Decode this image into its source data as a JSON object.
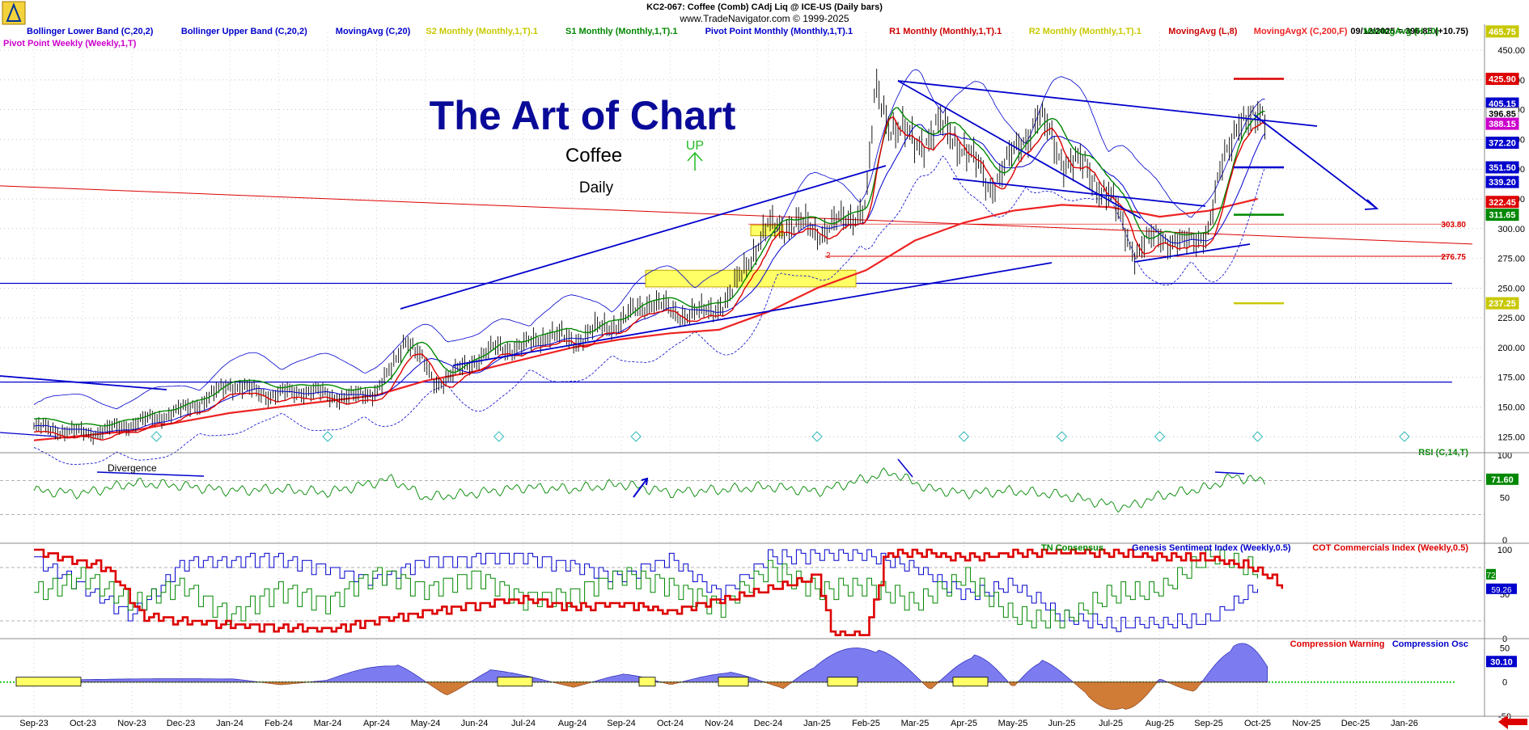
{
  "header": {
    "title": "KC2-067:  Coffee (Comb) CAdj Liq @ ICE-US  (Daily bars)",
    "copyright": "www.TradeNavigator.com © 1999-2025",
    "date_readout": "09/12/2025 = 396.85 (+10.75)"
  },
  "legend": [
    {
      "text": "Bollinger Lower Band (C,20,2)",
      "color": "#0000cc"
    },
    {
      "text": "Bollinger Upper Band (C,20,2)",
      "color": "#0000cc"
    },
    {
      "text": "MovingAvg (C,20)",
      "color": "#0000cc"
    },
    {
      "text": "S2 Monthly (Monthly,1,T).1",
      "color": "#c8c800"
    },
    {
      "text": "S1 Monthly (Monthly,1,T).1",
      "color": "#008800"
    },
    {
      "text": "Pivot Point Monthly (Monthly,1,T).1",
      "color": "#0000cc"
    },
    {
      "text": "R1 Monthly (Monthly,1,T).1",
      "color": "#cc0000"
    },
    {
      "text": "R2 Monthly (Monthly,1,T).1",
      "color": "#c8c800"
    },
    {
      "text": "MovingAvg (L,8)",
      "color": "#cc0000"
    },
    {
      "text": "MovingAvgX (C,200,F)",
      "color": "#ee2222"
    },
    {
      "text": "MovingAvg (H,10)",
      "color": "#008800"
    }
  ],
  "legend_line2": {
    "text": "Pivot Point Weekly (Weekly,1,T)",
    "color": "#cc00cc"
  },
  "annotations": {
    "art_title": "The Art of Chart",
    "commodity": "Coffee",
    "period": "Daily",
    "up_label": "UP",
    "divergence": "Divergence",
    "level_2": "2"
  },
  "colors": {
    "blue": "#0000cc",
    "red": "#dd0000",
    "green": "#008800",
    "yellow": "#c8c800",
    "highlight": "#ffff66"
  },
  "chart_data": [
    {
      "type": "line",
      "title": "KC2-067:  Coffee (Comb) CAdj Liq @ ICE-US  (Daily bars)",
      "x_labels": [
        "Sep-23",
        "Oct-23",
        "Nov-23",
        "Dec-23",
        "Jan-24",
        "Feb-24",
        "Mar-24",
        "Apr-24",
        "May-24",
        "Jun-24",
        "Jul-24",
        "Aug-24",
        "Sep-24",
        "Oct-24",
        "Nov-24",
        "Dec-24",
        "Jan-25",
        "Feb-25",
        "Mar-25",
        "Apr-25",
        "May-25",
        "Jun-25",
        "Jul-25",
        "Aug-25",
        "Sep-25",
        "Oct-25",
        "Nov-25",
        "Dec-25",
        "Jan-26"
      ],
      "y_ticks": [
        "450.00",
        "425.00",
        "400.00",
        "375.00",
        "350.00",
        "325.00",
        "300.00",
        "275.00",
        "250.00",
        "225.00",
        "200.00",
        "175.00",
        "150.00",
        "125.00"
      ],
      "ylim": [
        115,
        465
      ],
      "price_path": [
        [
          0,
          133
        ],
        [
          0.6,
          130
        ],
        [
          1.2,
          128
        ],
        [
          1.8,
          134
        ],
        [
          2.4,
          140
        ],
        [
          3,
          147
        ],
        [
          3.6,
          158
        ],
        [
          4,
          170
        ],
        [
          4.4,
          164
        ],
        [
          4.9,
          160
        ],
        [
          5.5,
          164
        ],
        [
          6,
          160
        ],
        [
          6.5,
          158
        ],
        [
          7,
          164
        ],
        [
          7.3,
          180
        ],
        [
          7.6,
          210
        ],
        [
          7.9,
          190
        ],
        [
          8.2,
          170
        ],
        [
          8.6,
          178
        ],
        [
          9,
          190
        ],
        [
          9.5,
          200
        ],
        [
          10,
          200
        ],
        [
          10.5,
          212
        ],
        [
          11,
          205
        ],
        [
          11.5,
          215
        ],
        [
          12,
          222
        ],
        [
          12.6,
          240
        ],
        [
          13,
          230
        ],
        [
          13.6,
          228
        ],
        [
          14.2,
          240
        ],
        [
          14.6,
          275
        ],
        [
          15,
          300
        ],
        [
          15.5,
          305
        ],
        [
          16,
          298
        ],
        [
          16.5,
          305
        ],
        [
          17,
          320
        ],
        [
          17.2,
          415
        ],
        [
          17.5,
          390
        ],
        [
          18,
          370
        ],
        [
          18.5,
          385
        ],
        [
          19,
          370
        ],
        [
          19.5,
          335
        ],
        [
          20,
          360
        ],
        [
          20.5,
          395
        ],
        [
          21,
          360
        ],
        [
          21.5,
          350
        ],
        [
          22,
          325
        ],
        [
          22.5,
          280
        ],
        [
          23,
          295
        ],
        [
          23.5,
          285
        ],
        [
          24,
          300
        ],
        [
          24.3,
          355
        ],
        [
          24.6,
          395
        ],
        [
          24.9,
          385
        ],
        [
          25.15,
          397
        ]
      ],
      "series": [
        {
          "name": "MovingAvgX (C,200,F)",
          "values": [
            [
              0,
              122
            ],
            [
              2,
              130
            ],
            [
              4,
              145
            ],
            [
              6,
              155
            ],
            [
              7,
              160
            ],
            [
              8,
              172
            ],
            [
              9,
              180
            ],
            [
              10,
              190
            ],
            [
              11,
              200
            ],
            [
              12,
              207
            ],
            [
              13,
              212
            ],
            [
              14,
              215
            ],
            [
              15,
              230
            ],
            [
              16,
              250
            ],
            [
              17,
              265
            ],
            [
              18,
              290
            ],
            [
              19,
              305
            ],
            [
              20,
              315
            ],
            [
              21,
              320
            ],
            [
              22,
              318
            ],
            [
              23,
              310
            ],
            [
              24,
              315
            ],
            [
              25,
              325
            ]
          ]
        },
        {
          "name": "RSI (C,14,T)",
          "values": [
            [
              0,
              58
            ],
            [
              1,
              55
            ],
            [
              2,
              67
            ],
            [
              3,
              64
            ],
            [
              4,
              58
            ],
            [
              5,
              60
            ],
            [
              6,
              56
            ],
            [
              7.3,
              72
            ],
            [
              8,
              50
            ],
            [
              9,
              55
            ],
            [
              10,
              62
            ],
            [
              11,
              60
            ],
            [
              12,
              66
            ],
            [
              13,
              56
            ],
            [
              14,
              59
            ],
            [
              15,
              63
            ],
            [
              16,
              57
            ],
            [
              17.5,
              80
            ],
            [
              18.3,
              60
            ],
            [
              19,
              55
            ],
            [
              20,
              58
            ],
            [
              21,
              53
            ],
            [
              22.3,
              38
            ],
            [
              23,
              52
            ],
            [
              24,
              62
            ],
            [
              24.5,
              75
            ],
            [
              25,
              70
            ]
          ]
        },
        {
          "name": "Genesis Sentiment Index (Weekly,0.5)",
          "values": [
            [
              0,
              90
            ],
            [
              2,
              25
            ],
            [
              3,
              85
            ],
            [
              5,
              90
            ],
            [
              7,
              65
            ],
            [
              8,
              88
            ],
            [
              10,
              92
            ],
            [
              12,
              70
            ],
            [
              13,
              90
            ],
            [
              14,
              50
            ],
            [
              15,
              92
            ],
            [
              17,
              95
            ],
            [
              18,
              80
            ],
            [
              19,
              50
            ],
            [
              20,
              60
            ],
            [
              21,
              25
            ],
            [
              22,
              15
            ],
            [
              23,
              18
            ],
            [
              24,
              20
            ],
            [
              25,
              60
            ]
          ]
        },
        {
          "name": "TN Consensus",
          "values": [
            [
              0,
              50
            ],
            [
              1,
              70
            ],
            [
              2,
              40
            ],
            [
              3,
              60
            ],
            [
              4,
              25
            ],
            [
              5,
              55
            ],
            [
              6,
              40
            ],
            [
              7,
              75
            ],
            [
              8,
              55
            ],
            [
              9,
              70
            ],
            [
              10,
              45
            ],
            [
              11,
              50
            ],
            [
              12,
              72
            ],
            [
              13,
              60
            ],
            [
              14,
              35
            ],
            [
              15,
              80
            ],
            [
              16,
              55
            ],
            [
              17,
              60
            ],
            [
              18,
              40
            ],
            [
              19,
              70
            ],
            [
              20,
              25
            ],
            [
              21,
              20
            ],
            [
              22,
              50
            ],
            [
              23,
              55
            ],
            [
              24,
              96
            ],
            [
              25,
              75
            ]
          ]
        },
        {
          "name": "COT Commercials Index (Weekly,0.5)",
          "values": [
            [
              0,
              98
            ],
            [
              1.5,
              80
            ],
            [
              2.2,
              25
            ],
            [
              4,
              15
            ],
            [
              6,
              10
            ],
            [
              8,
              30
            ],
            [
              10,
              45
            ],
            [
              11,
              35
            ],
            [
              12,
              40
            ],
            [
              13,
              30
            ],
            [
              14,
              42
            ],
            [
              15,
              55
            ],
            [
              16,
              70
            ],
            [
              16.3,
              4
            ],
            [
              17,
              4
            ],
            [
              17.4,
              98
            ],
            [
              19,
              92
            ],
            [
              20,
              95
            ],
            [
              21,
              98
            ],
            [
              22,
              96
            ],
            [
              23,
              92
            ],
            [
              24,
              90
            ],
            [
              24.8,
              82
            ],
            [
              25.5,
              60
            ]
          ]
        },
        {
          "name": "Compression Osc",
          "values": [
            [
              0,
              2
            ],
            [
              4,
              5
            ],
            [
              5,
              -4
            ],
            [
              6,
              3
            ],
            [
              7.4,
              26
            ],
            [
              8.4,
              -20
            ],
            [
              9.3,
              18
            ],
            [
              11,
              -8
            ],
            [
              12,
              12
            ],
            [
              13,
              -4
            ],
            [
              14.2,
              15
            ],
            [
              15.3,
              -10
            ],
            [
              16,
              25
            ],
            [
              17.2,
              48
            ],
            [
              18.3,
              -12
            ],
            [
              19.2,
              40
            ],
            [
              20,
              -8
            ],
            [
              20.6,
              32
            ],
            [
              21.5,
              -18
            ],
            [
              22.3,
              -40
            ],
            [
              23,
              5
            ],
            [
              23.7,
              -15
            ],
            [
              24.5,
              52
            ],
            [
              25.2,
              25
            ]
          ]
        }
      ]
    },
    {
      "type": "line",
      "title": "RSI (C,14,T)",
      "y_ticks": [
        "100",
        "50",
        "0"
      ],
      "ylim": [
        0,
        100
      ],
      "last_value": "71.60"
    },
    {
      "type": "line",
      "title": "TN Consensus",
      "series_labels": [
        "TN Consensus",
        "Genesis Sentiment Index (Weekly,0.5)",
        "COT Commercials Index (Weekly,0.5)"
      ],
      "y_ticks": [
        "100",
        "50",
        "0"
      ],
      "ylim": [
        0,
        100
      ],
      "last_values": [
        "72",
        "59.26"
      ]
    },
    {
      "type": "area",
      "title": "Compression Osc",
      "series_labels": [
        "Compression Warning",
        "Compression Osc"
      ],
      "y_ticks": [
        "50",
        "0",
        "-50"
      ],
      "ylim": [
        -50,
        60
      ],
      "last_value": "30.10"
    }
  ],
  "price_tags": [
    {
      "label": "465.75",
      "value": 465.75,
      "bg": "#c8c800",
      "fg": "#ffffff"
    },
    {
      "label": "425.90",
      "value": 425.9,
      "bg": "#dd0000",
      "fg": "#ffffff"
    },
    {
      "label": "405.15",
      "value": 405.15,
      "bg": "#0000cc",
      "fg": "#ffffff"
    },
    {
      "label": "396.85",
      "value": 396.85,
      "bg": "#ffffff",
      "fg": "#000000"
    },
    {
      "label": "388.15",
      "value": 388.15,
      "bg": "#cc00cc",
      "fg": "#ffffff"
    },
    {
      "label": "372.20",
      "value": 372.2,
      "bg": "#0000cc",
      "fg": "#ffffff"
    },
    {
      "label": "351.50",
      "value": 351.5,
      "bg": "#0000cc",
      "fg": "#ffffff"
    },
    {
      "label": "339.20",
      "value": 339.2,
      "bg": "#0000cc",
      "fg": "#ffffff"
    },
    {
      "label": "322.45",
      "value": 322.45,
      "bg": "#dd0000",
      "fg": "#ffffff"
    },
    {
      "label": "311.65",
      "value": 311.65,
      "bg": "#008800",
      "fg": "#ffffff"
    },
    {
      "label": "237.25",
      "value": 237.25,
      "bg": "#c8c800",
      "fg": "#ffffff"
    }
  ],
  "pivot_ticks": [
    {
      "value": 425.9,
      "color": "#dd0000"
    },
    {
      "value": 351.5,
      "color": "#0000cc"
    },
    {
      "value": 311.65,
      "color": "#008800"
    },
    {
      "value": 237.25,
      "color": "#c8c800"
    }
  ],
  "level_labels": [
    {
      "label": "303.80",
      "value": 303.8
    },
    {
      "label": "276.75",
      "value": 276.75
    }
  ],
  "event_markers": [
    2.5,
    6,
    9.5,
    12.3,
    16,
    19,
    21,
    23,
    25,
    28
  ]
}
